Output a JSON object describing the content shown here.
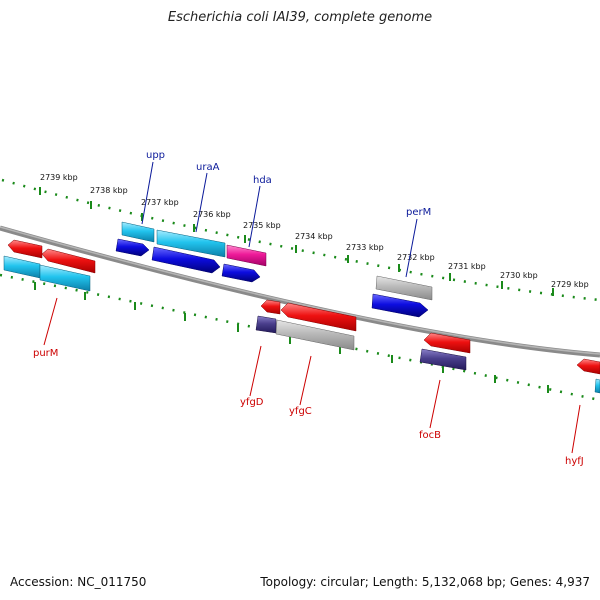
{
  "title": "Escherichia coli IAI39, complete genome",
  "footer": {
    "accession": "Accession: NC_011750",
    "summary": "Topology: circular; Length: 5,132,068 bp; Genes: 4,937"
  },
  "colors": {
    "backbone": "#8a8a8a",
    "ticks": "#1a8a1a",
    "gene_label_top": "#0b1a9a",
    "gene_label_bottom": "#cc0000",
    "red": "#ee1111",
    "blue": "#0d0de0",
    "cyan": "#22c4ee",
    "pink": "#ee1a99",
    "gray": "#b9b9b9",
    "navy": "#4a3f8c"
  },
  "kbp_labels": [
    "2739 kbp",
    "2738 kbp",
    "2737 kbp",
    "2736 kbp",
    "2735 kbp",
    "2734 kbp",
    "2733 kbp",
    "2732 kbp",
    "2731 kbp",
    "2730 kbp",
    "2729 kbp"
  ],
  "gene_labels_top": [
    "upp",
    "uraA",
    "hda",
    "perM"
  ],
  "gene_labels_bottom": [
    "purM",
    "yfgD",
    "yfgC",
    "focB",
    "hyfJ"
  ]
}
